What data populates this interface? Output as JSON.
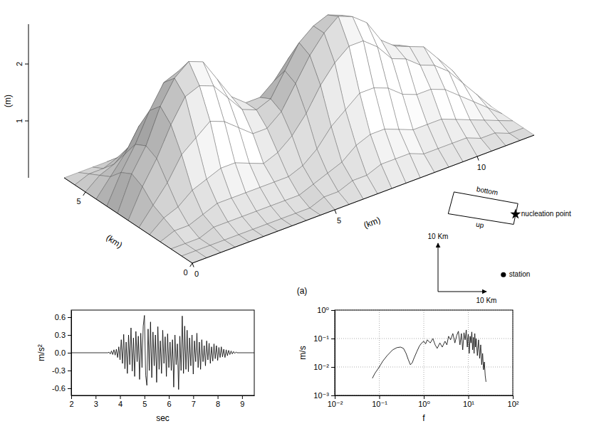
{
  "chart_data": [
    {
      "type": "surface",
      "caption": "(a)",
      "xlabel": "(km)",
      "ylabel": "(km)",
      "zlabel": "(m)",
      "x": [
        0,
        0.5,
        1,
        1.5,
        2,
        2.5,
        3,
        3.5,
        4,
        4.5,
        5,
        5.5,
        6,
        6.5,
        7,
        7.5,
        8,
        8.5,
        9,
        9.5,
        10,
        10.5,
        11,
        11.5,
        12
      ],
      "y": [
        0,
        0.5,
        1,
        1.5,
        2,
        2.5,
        3,
        3.5,
        4,
        4.5,
        5,
        5.5,
        6
      ],
      "z": [
        [
          0,
          0,
          0,
          0,
          0,
          0,
          0,
          0,
          0,
          0,
          0,
          0,
          0,
          0,
          0,
          0,
          0,
          0,
          0,
          0,
          0,
          0,
          0,
          0,
          0
        ],
        [
          0,
          0,
          0,
          0,
          0,
          0,
          0,
          0,
          0,
          0,
          0.1,
          0.1,
          0.2,
          0.2,
          0.3,
          0.3,
          0.3,
          0.2,
          0.2,
          0.2,
          0.2,
          0.1,
          0.1,
          0,
          0
        ],
        [
          0,
          0,
          0,
          0.1,
          0.1,
          0.1,
          0.1,
          0.1,
          0.1,
          0.1,
          0.2,
          0.3,
          0.4,
          0.6,
          0.7,
          0.7,
          0.6,
          0.5,
          0.5,
          0.5,
          0.4,
          0.3,
          0.2,
          0.1,
          0
        ],
        [
          0,
          0.1,
          0.1,
          0.2,
          0.3,
          0.3,
          0.3,
          0.3,
          0.3,
          0.3,
          0.4,
          0.6,
          0.9,
          1.1,
          1.3,
          1.3,
          1.2,
          1.0,
          0.9,
          0.9,
          0.8,
          0.6,
          0.4,
          0.2,
          0
        ],
        [
          0,
          0.2,
          0.3,
          0.5,
          0.6,
          0.7,
          0.7,
          0.6,
          0.5,
          0.6,
          0.8,
          1.1,
          1.5,
          1.8,
          2.0,
          2.0,
          1.8,
          1.5,
          1.4,
          1.2,
          1.1,
          0.9,
          0.6,
          0.3,
          0
        ],
        [
          0,
          0.3,
          0.6,
          1.0,
          1.2,
          1.4,
          1.3,
          1.1,
          0.9,
          0.9,
          1.1,
          1.5,
          1.9,
          2.2,
          2.4,
          2.3,
          2.1,
          1.7,
          1.5,
          1.4,
          1.3,
          1.0,
          0.7,
          0.3,
          0
        ],
        [
          0,
          0.5,
          0.9,
          1.4,
          1.8,
          1.9,
          1.8,
          1.5,
          1.2,
          1.1,
          1.2,
          1.6,
          2.0,
          2.2,
          2.3,
          2.2,
          1.9,
          1.6,
          1.4,
          1.3,
          1.1,
          0.9,
          0.6,
          0.3,
          0
        ],
        [
          0,
          0.6,
          1.0,
          1.6,
          2.0,
          2.2,
          2.1,
          1.7,
          1.3,
          1.1,
          1.1,
          1.3,
          1.6,
          1.8,
          1.8,
          1.6,
          1.4,
          1.1,
          1.0,
          0.9,
          0.8,
          0.6,
          0.4,
          0.2,
          0
        ],
        [
          0,
          0.5,
          0.9,
          1.4,
          1.8,
          1.9,
          1.8,
          1.5,
          1.1,
          0.8,
          0.8,
          0.9,
          1.0,
          1.1,
          1.0,
          0.9,
          0.8,
          0.6,
          0.5,
          0.5,
          0.4,
          0.3,
          0.2,
          0.1,
          0
        ],
        [
          0,
          0.3,
          0.6,
          1.0,
          1.2,
          1.3,
          1.2,
          1.0,
          0.7,
          0.5,
          0.4,
          0.5,
          0.5,
          0.5,
          0.5,
          0.4,
          0.3,
          0.3,
          0.2,
          0.2,
          0.2,
          0.1,
          0.1,
          0,
          0
        ],
        [
          0,
          0.2,
          0.3,
          0.5,
          0.6,
          0.7,
          0.7,
          0.5,
          0.4,
          0.3,
          0.2,
          0.2,
          0.2,
          0.2,
          0.2,
          0.1,
          0.1,
          0.1,
          0.1,
          0.1,
          0.1,
          0,
          0,
          0,
          0
        ],
        [
          0,
          0.1,
          0.1,
          0.2,
          0.3,
          0.3,
          0.3,
          0.2,
          0.1,
          0.1,
          0.1,
          0.1,
          0.1,
          0,
          0,
          0,
          0,
          0,
          0,
          0,
          0,
          0,
          0,
          0,
          0
        ],
        [
          0,
          0,
          0,
          0,
          0,
          0,
          0,
          0,
          0,
          0,
          0,
          0,
          0,
          0,
          0,
          0,
          0,
          0,
          0,
          0,
          0,
          0,
          0,
          0,
          0
        ]
      ],
      "xlim": [
        0,
        12
      ],
      "xticks": [
        0,
        5,
        10
      ],
      "ylim": [
        0,
        6
      ],
      "yticks": [
        0,
        5
      ],
      "zlim": [
        0,
        2.7
      ],
      "zticks": [
        1,
        2
      ],
      "color": "#d9d9d9"
    },
    {
      "type": "map",
      "fault": {
        "corners": [
          [
            3.3,
            20.6
          ],
          [
            16.5,
            18.2
          ],
          [
            15.6,
            13.9
          ],
          [
            2.1,
            16.1
          ]
        ],
        "labels": [
          "bottom",
          "up"
        ]
      },
      "nucleation": {
        "x": 16.0,
        "y": 16.0,
        "label": "nucleation point",
        "marker": "star"
      },
      "station": {
        "x": 13.5,
        "y": 3.5,
        "label": "station",
        "marker": "circle"
      },
      "scale_bar": 10,
      "xlabel": "10 Km",
      "ylabel": "10 Km"
    },
    {
      "type": "line",
      "xlabel": "sec",
      "ylabel": "m/s²",
      "color": "#000000",
      "x": [
        2,
        3.5,
        3.55,
        3.6,
        3.65,
        3.7,
        3.75,
        3.8,
        3.85,
        3.9,
        3.95,
        4,
        4.05,
        4.1,
        4.15,
        4.2,
        4.25,
        4.3,
        4.35,
        4.4,
        4.45,
        4.5,
        4.55,
        4.6,
        4.65,
        4.7,
        4.75,
        4.8,
        4.85,
        4.9,
        4.95,
        5,
        5.05,
        5.1,
        5.15,
        5.2,
        5.25,
        5.3,
        5.35,
        5.4,
        5.45,
        5.5,
        5.55,
        5.6,
        5.65,
        5.7,
        5.75,
        5.8,
        5.85,
        5.9,
        5.95,
        6,
        6.05,
        6.1,
        6.15,
        6.2,
        6.25,
        6.3,
        6.35,
        6.4,
        6.45,
        6.5,
        6.55,
        6.6,
        6.65,
        6.7,
        6.75,
        6.8,
        6.85,
        6.9,
        6.95,
        7,
        7.05,
        7.1,
        7.15,
        7.2,
        7.25,
        7.3,
        7.35,
        7.4,
        7.45,
        7.5,
        7.55,
        7.6,
        7.65,
        7.7,
        7.75,
        7.8,
        7.85,
        7.9,
        7.95,
        8,
        8.05,
        8.1,
        8.15,
        8.2,
        8.25,
        8.3,
        8.35,
        8.4,
        8.45,
        8.5,
        8.55,
        8.6,
        8.65,
        8.7,
        8.75,
        8.8,
        9.5
      ],
      "values": [
        0,
        0,
        0.01,
        -0.02,
        0.03,
        -0.03,
        0.05,
        -0.04,
        0.06,
        -0.08,
        0.1,
        -0.12,
        0.22,
        -0.18,
        0.31,
        -0.27,
        0.18,
        -0.35,
        0.3,
        -0.2,
        0.42,
        -0.31,
        0.25,
        -0.4,
        0.36,
        -0.15,
        0.28,
        -0.45,
        0.33,
        -0.25,
        0.45,
        0.63,
        -0.38,
        -0.55,
        0.4,
        -0.3,
        0.52,
        -0.42,
        0.35,
        -0.22,
        0.3,
        -0.5,
        0.44,
        -0.28,
        0.2,
        -0.35,
        0.38,
        -0.18,
        0.27,
        -0.4,
        0.32,
        -0.25,
        0.18,
        -0.3,
        0.22,
        -0.58,
        0.3,
        -0.2,
        0.15,
        -0.62,
        0.28,
        -0.3,
        0.62,
        -0.35,
        0.45,
        -0.28,
        0.38,
        -0.32,
        0.25,
        -0.22,
        0.3,
        -0.36,
        0.2,
        -0.15,
        0.33,
        -0.25,
        0.18,
        -0.28,
        0.22,
        -0.15,
        0.12,
        -0.22,
        0.2,
        -0.12,
        0.16,
        -0.18,
        0.1,
        -0.14,
        0.15,
        -0.1,
        0.12,
        -0.13,
        0.09,
        -0.08,
        0.1,
        -0.07,
        0.06,
        -0.08,
        0.05,
        -0.05,
        0.04,
        -0.03,
        0.03,
        -0.02,
        0.02,
        -0.01,
        0.01,
        0,
        0
      ],
      "xlim": [
        2,
        9.5
      ],
      "xticks": [
        2,
        3,
        4,
        5,
        6,
        7,
        8,
        9
      ],
      "ylim": [
        -0.72,
        0.72
      ],
      "yticks": [
        -0.6,
        -0.3,
        {
          "value": 0,
          "label": "0.0"
        },
        0.3,
        0.6
      ]
    },
    {
      "type": "line",
      "log": true,
      "grid": true,
      "xlabel": "f",
      "ylabel": "m/s",
      "color": "#000000",
      "x": [
        0.07,
        0.08,
        0.1,
        0.12,
        0.15,
        0.2,
        0.25,
        0.3,
        0.35,
        0.4,
        0.45,
        0.5,
        0.55,
        0.6,
        0.7,
        0.8,
        0.9,
        1,
        1.1,
        1.2,
        1.4,
        1.6,
        1.8,
        2,
        2.3,
        2.6,
        3,
        3.3,
        3.6,
        4,
        4.5,
        5,
        5.5,
        6,
        6.5,
        7,
        7.5,
        8,
        8.5,
        9,
        9.5,
        10,
        10.5,
        11,
        11.5,
        12,
        12.5,
        13,
        13.5,
        14,
        14.5,
        15,
        16,
        17,
        18,
        19,
        20,
        21,
        22,
        23,
        24,
        25
      ],
      "values": [
        0.004,
        0.006,
        0.01,
        0.016,
        0.025,
        0.04,
        0.048,
        0.05,
        0.045,
        0.03,
        0.018,
        0.012,
        0.014,
        0.02,
        0.035,
        0.055,
        0.07,
        0.08,
        0.065,
        0.09,
        0.07,
        0.1,
        0.06,
        0.045,
        0.07,
        0.05,
        0.08,
        0.06,
        0.12,
        0.09,
        0.15,
        0.07,
        0.13,
        0.18,
        0.06,
        0.15,
        0.04,
        0.16,
        0.09,
        0.2,
        0.05,
        0.14,
        0.03,
        0.12,
        0.07,
        0.17,
        0.04,
        0.11,
        0.03,
        0.15,
        0.05,
        0.1,
        0.025,
        0.09,
        0.02,
        0.06,
        0.012,
        0.03,
        0.008,
        0.015,
        0.005,
        0.003
      ],
      "xlim": [
        0.01,
        100
      ],
      "xticks": [
        {
          "value": 0.01,
          "label": "10⁻²"
        },
        {
          "value": 0.1,
          "label": "10⁻¹"
        },
        {
          "value": 1,
          "label": "10⁰"
        },
        {
          "value": 10,
          "label": "10¹"
        },
        {
          "value": 100,
          "label": "10²"
        }
      ],
      "ylim": [
        0.001,
        1
      ],
      "yticks": [
        {
          "value": 0.001,
          "label": "10⁻³"
        },
        {
          "value": 0.01,
          "label": "10⁻²"
        },
        {
          "value": 0.1,
          "label": "10⁻¹"
        },
        {
          "value": 1,
          "label": "10⁰"
        }
      ]
    }
  ]
}
